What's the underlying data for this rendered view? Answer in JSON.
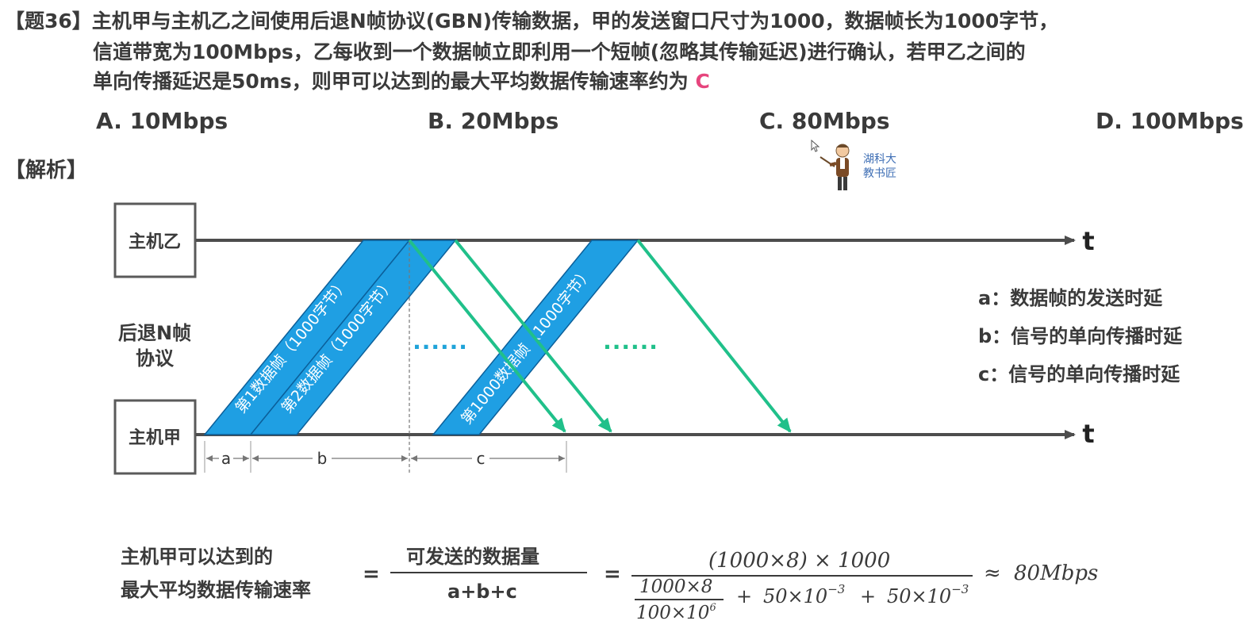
{
  "question": {
    "line1": "【题36】主机甲与主机乙之间使用后退N帧协议(GBN)传输数据，甲的发送窗口尺寸为1000，数据帧长为1000字节，",
    "line2": "信道带宽为100Mbps，乙每收到一个数据帧立即利用一个短帧(忽略其传输延迟)进行确认，若甲乙之间的",
    "line3": "单向传播延迟是50ms，则甲可以达到的最大平均数据传输速率约为",
    "answer": "C"
  },
  "options": [
    "A. 10Mbps",
    "B. 20Mbps",
    "C. 80Mbps",
    "D. 100Mbps"
  ],
  "analysis_title": "【解析】",
  "teacher": {
    "line1": "湖科大",
    "line2": "教书匠"
  },
  "diagram": {
    "host_b": "主机乙",
    "host_a": "主机甲",
    "protocol_line1": "后退N帧",
    "protocol_line2": "协议",
    "time_label": "t",
    "frames": [
      "第1数据帧（1000字节）",
      "第2数据帧（1000字节）",
      "第1000数据帧（1000字节）"
    ],
    "ellipsis": "......",
    "interval_labels": [
      "a",
      "b",
      "c"
    ],
    "legend": [
      "a：数据帧的发送时延",
      "b：信号的单向传播时延",
      "c：信号的单向传播时延"
    ],
    "colors": {
      "frame_fill": "#1f9fe3",
      "ack_arrow": "#20c08a",
      "axis": "#4d4d4d"
    }
  },
  "formula": {
    "lhs_line1": "主机甲可以达到的",
    "lhs_line2": "最大平均数据传输速率",
    "eq": "=",
    "frac_num": "可发送的数据量",
    "frac_den": "a+b+c",
    "num2": "(1000×8) × 1000",
    "inner_num": "1000×8",
    "inner_den_base": "100×10",
    "inner_den_exp": "6",
    "plus": "+",
    "term_base": "50×10",
    "term_exp": "−3",
    "approx": "≈",
    "result": "80Mbps"
  }
}
